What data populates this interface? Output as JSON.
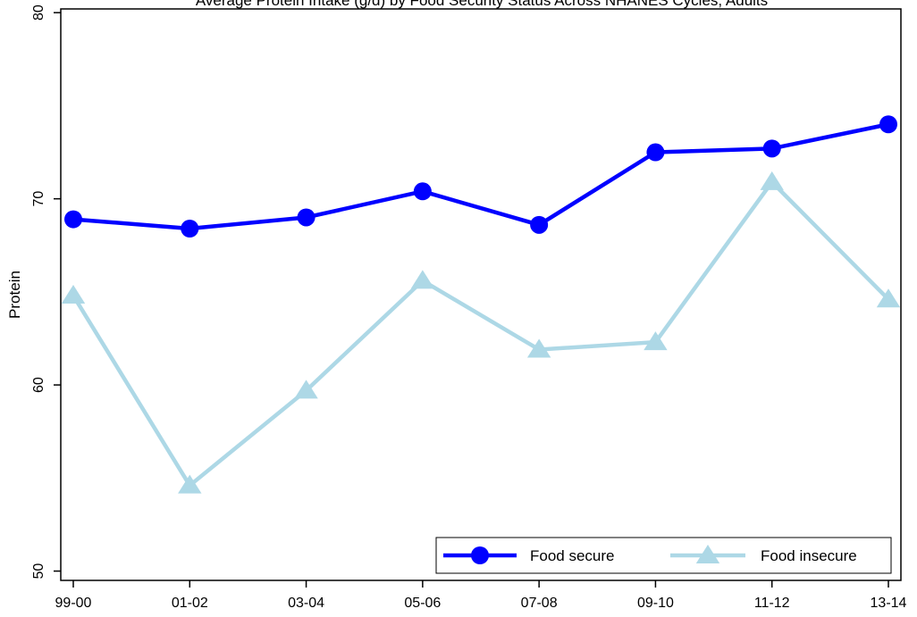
{
  "chart_data": {
    "type": "line",
    "title": "Average Protein Intake (g/d) by Food Security Status Across NHANES Cycles, Adults",
    "xlabel": "",
    "ylabel": "Protein",
    "categories": [
      "99-00",
      "01-02",
      "03-04",
      "05-06",
      "07-08",
      "09-10",
      "11-12",
      "13-14"
    ],
    "ylim": [
      49.5,
      80.2
    ],
    "yticks": [
      "50",
      "60",
      "70",
      "80"
    ],
    "grid": false,
    "legend_position": "bottom-right",
    "series": [
      {
        "name": "Food secure",
        "color": "#0000ff",
        "marker": "circle",
        "values": [
          68.9,
          68.4,
          69.0,
          70.4,
          68.6,
          72.5,
          72.7,
          74.0
        ]
      },
      {
        "name": "Food insecure",
        "color": "#add8e6",
        "marker": "triangle",
        "values": [
          64.8,
          54.6,
          59.7,
          65.6,
          61.9,
          62.3,
          70.9,
          64.6
        ]
      }
    ]
  }
}
